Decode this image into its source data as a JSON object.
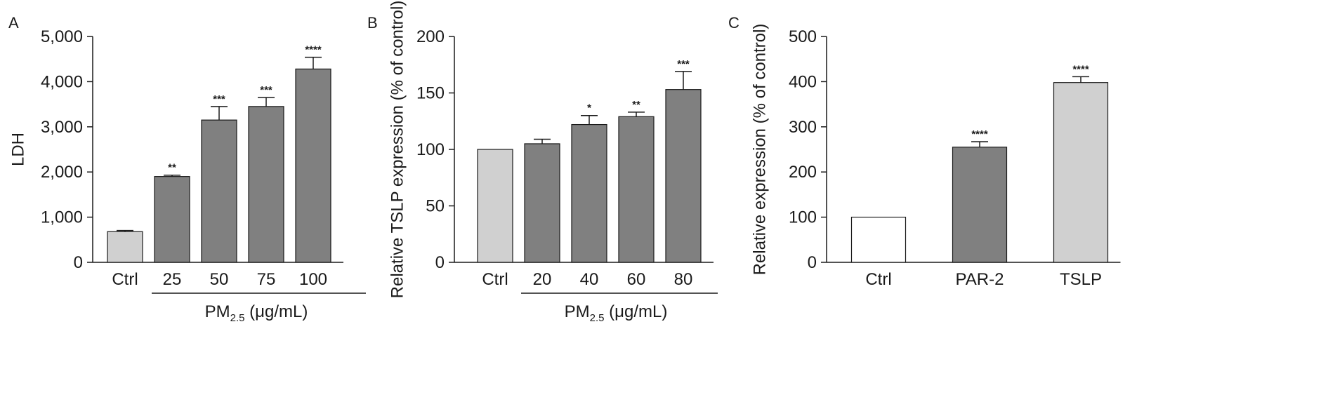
{
  "colors": {
    "light": "#d0d0d0",
    "dark": "#808080",
    "white": "#ffffff",
    "axis": "#1a1a1a"
  },
  "chart_data": [
    {
      "panel": "A",
      "type": "bar",
      "categories": [
        "Ctrl",
        "25",
        "50",
        "75",
        "100"
      ],
      "values": [
        680,
        1900,
        3150,
        3450,
        4280
      ],
      "errors": [
        25,
        30,
        300,
        200,
        260
      ],
      "significance": [
        "",
        "**",
        "***",
        "***",
        "****"
      ],
      "fills": [
        "light",
        "dark",
        "dark",
        "dark",
        "dark"
      ],
      "ylabel": "LDH",
      "yticks": [
        "0",
        "1,000",
        "2,000",
        "3,000",
        "4,000",
        "5,000"
      ],
      "ylim": [
        0,
        5000
      ],
      "group_label": {
        "prefix": "PM",
        "sub": "2.5",
        "suffix": " (μg/mL)"
      }
    },
    {
      "panel": "B",
      "type": "bar",
      "categories": [
        "Ctrl",
        "20",
        "40",
        "60",
        "80"
      ],
      "values": [
        100,
        105,
        122,
        129,
        153
      ],
      "errors": [
        0,
        4,
        8,
        4,
        16
      ],
      "significance": [
        "",
        "",
        "*",
        "**",
        "***"
      ],
      "fills": [
        "light",
        "dark",
        "dark",
        "dark",
        "dark"
      ],
      "ylabel": "Relative TSLP expression (% of control)",
      "yticks": [
        "0",
        "50",
        "100",
        "150",
        "200"
      ],
      "ylim": [
        0,
        200
      ],
      "group_label": {
        "prefix": "PM",
        "sub": "2.5",
        "suffix": " (μg/mL)"
      }
    },
    {
      "panel": "C",
      "type": "bar",
      "categories": [
        "Ctrl",
        "PAR-2",
        "TSLP"
      ],
      "values": [
        100,
        255,
        398
      ],
      "errors": [
        0,
        12,
        13
      ],
      "significance": [
        "",
        "****",
        "****"
      ],
      "fills": [
        "white",
        "dark",
        "light"
      ],
      "ylabel": "Relative expression (% of control)",
      "yticks": [
        "0",
        "100",
        "200",
        "300",
        "400",
        "500"
      ],
      "ylim": [
        0,
        500
      ]
    }
  ]
}
